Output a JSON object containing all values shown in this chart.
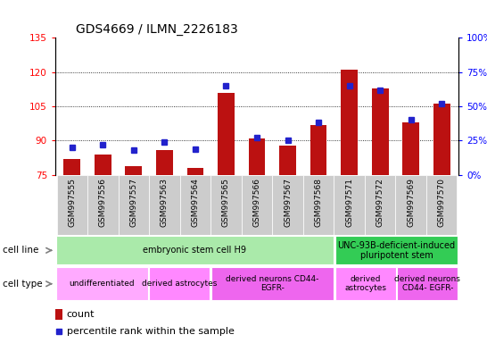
{
  "title": "GDS4669 / ILMN_2226183",
  "samples": [
    "GSM997555",
    "GSM997556",
    "GSM997557",
    "GSM997563",
    "GSM997564",
    "GSM997565",
    "GSM997566",
    "GSM997567",
    "GSM997568",
    "GSM997571",
    "GSM997572",
    "GSM997569",
    "GSM997570"
  ],
  "count_values": [
    82,
    84,
    79,
    86,
    78,
    111,
    91,
    88,
    97,
    121,
    113,
    98,
    106
  ],
  "percentile_values": [
    20,
    22,
    18,
    24,
    19,
    65,
    27,
    25,
    38,
    65,
    62,
    40,
    52
  ],
  "ylim_left": [
    75,
    135
  ],
  "ylim_right": [
    0,
    100
  ],
  "yticks_left": [
    75,
    90,
    105,
    120,
    135
  ],
  "yticks_right": [
    0,
    25,
    50,
    75,
    100
  ],
  "grid_lines": [
    90,
    105,
    120
  ],
  "cell_line_groups": [
    {
      "label": "embryonic stem cell H9",
      "start": 0,
      "end": 9,
      "color": "#aaeaaa"
    },
    {
      "label": "UNC-93B-deficient-induced\npluripotent stem",
      "start": 9,
      "end": 13,
      "color": "#33cc55"
    }
  ],
  "cell_type_groups": [
    {
      "label": "undifferentiated",
      "start": 0,
      "end": 3,
      "color": "#ffaaff"
    },
    {
      "label": "derived astrocytes",
      "start": 3,
      "end": 5,
      "color": "#ff88ff"
    },
    {
      "label": "derived neurons CD44-\nEGFR-",
      "start": 5,
      "end": 9,
      "color": "#ee66ee"
    },
    {
      "label": "derived\nastrocytes",
      "start": 9,
      "end": 11,
      "color": "#ff88ff"
    },
    {
      "label": "derived neurons\nCD44- EGFR-",
      "start": 11,
      "end": 13,
      "color": "#ee66ee"
    }
  ],
  "bar_color": "#bb1111",
  "dot_color": "#2222cc",
  "bar_width": 0.55,
  "plot_bg": "#ffffff",
  "xtick_bg": "#cccccc",
  "title_fontsize": 10,
  "label_fontsize": 8,
  "tick_fontsize": 7.5,
  "sample_fontsize": 6.5
}
